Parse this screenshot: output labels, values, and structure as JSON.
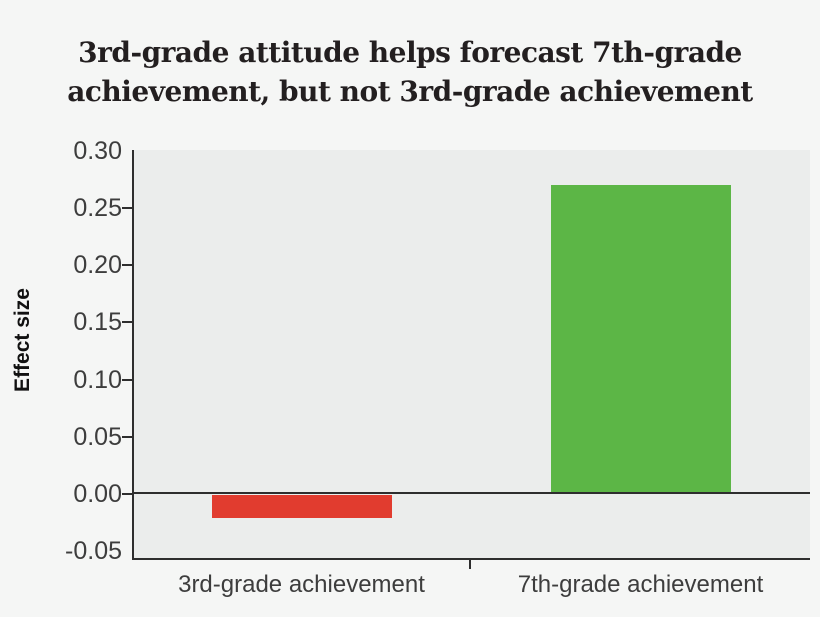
{
  "title_line1": "3rd-grade attitude helps forecast 7th-grade",
  "title_line2": "achievement, but not 3rd-grade achievement",
  "y_axis_label": "Effect size",
  "colors": {
    "page_bg": "#f5f6f5",
    "plot_bg": "#ebedec",
    "axis": "#2e2e2e",
    "tick_text": "#3d3d3d",
    "title_text": "#231f20",
    "bar_negative": "#e13c2f",
    "bar_positive": "#5cb646"
  },
  "chart_data": {
    "type": "bar",
    "title": "3rd-grade attitude helps forecast 7th-grade achievement, but not 3rd-grade achievement",
    "xlabel": "",
    "ylabel": "Effect size",
    "categories": [
      "3rd-grade achievement",
      "7th-grade achievement"
    ],
    "values": [
      -0.02,
      0.27
    ],
    "bar_colors": [
      "#e13c2f",
      "#5cb646"
    ],
    "yticks": [
      0.3,
      0.25,
      0.2,
      0.15,
      0.1,
      0.05,
      0.0,
      -0.05
    ],
    "ytick_labels": [
      "0.30",
      "0.25",
      "0.20",
      "0.15",
      "0.10",
      "0.05",
      "0.00",
      "-0.05"
    ],
    "ylim": [
      -0.058,
      0.301
    ],
    "grid": false,
    "legend": false,
    "baseline_at_zero": true
  }
}
